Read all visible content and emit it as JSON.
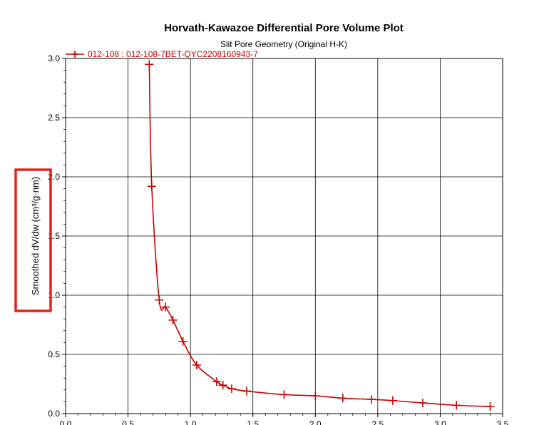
{
  "chart_data": {
    "type": "line",
    "title": "Horvath-Kawazoe Differential Pore Volume Plot",
    "subtitle": "Slit Pore Geometry (Original H-K)",
    "xlabel": "",
    "ylabel": "Smoothed dV/dw (cm³/g·nm)",
    "xlim": [
      0.0,
      3.5
    ],
    "ylim": [
      0.0,
      3.0
    ],
    "x_ticks": [
      "0.0",
      "0.5",
      "1.0",
      "1.5",
      "2.0",
      "2.5",
      "3.0",
      "3.5"
    ],
    "y_ticks": [
      "0.0",
      "0.5",
      "1.0",
      "1.5",
      "2.0",
      "2.5",
      "3.0"
    ],
    "grid": true,
    "legend_position": "top-left",
    "series": [
      {
        "name": "012-108 : 012-108-7BET-QYC2208160943-7",
        "color": "#cc0000",
        "marker": "plus",
        "points": [
          [
            0.67,
            2.95
          ],
          [
            0.69,
            1.92
          ],
          [
            0.75,
            0.96
          ],
          [
            0.8,
            0.9
          ],
          [
            0.86,
            0.79
          ],
          [
            0.94,
            0.61
          ],
          [
            1.05,
            0.41
          ],
          [
            1.21,
            0.27
          ],
          [
            1.26,
            0.24
          ],
          [
            1.33,
            0.21
          ],
          [
            1.45,
            0.19
          ],
          [
            1.75,
            0.16
          ],
          [
            2.0,
            0.15
          ],
          [
            2.22,
            0.13
          ],
          [
            2.45,
            0.12
          ],
          [
            2.62,
            0.11
          ],
          [
            2.86,
            0.09
          ],
          [
            3.13,
            0.07
          ],
          [
            3.4,
            0.06
          ]
        ]
      }
    ]
  },
  "annotation": {
    "highlight_color": "#e8201a"
  }
}
